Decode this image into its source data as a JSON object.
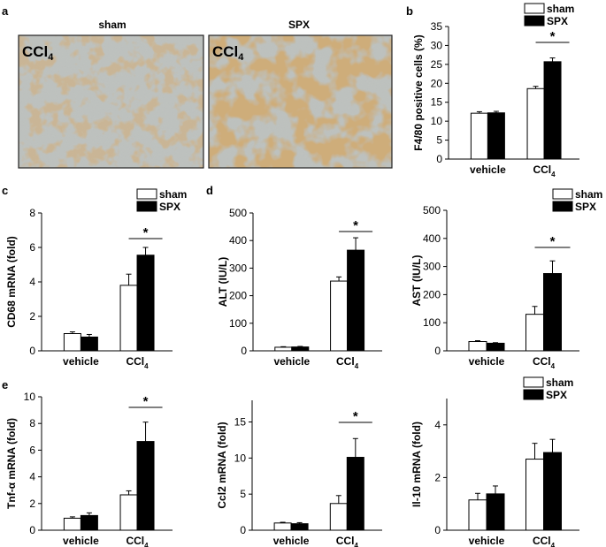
{
  "panel_labels": [
    "a",
    "b",
    "c",
    "d",
    "e"
  ],
  "micrographs": [
    {
      "title": "sham",
      "corner_label": "CCl",
      "corner_sub": "4"
    },
    {
      "title": "SPX",
      "corner_label": "CCl",
      "corner_sub": "4"
    }
  ],
  "legend": {
    "sham": "sham",
    "spx": "SPX"
  },
  "colors": {
    "sham": "#ffffff",
    "spx": "#000000",
    "tissue": "#b9bdb8",
    "stain": "#a86a2e"
  },
  "chart_data": [
    {
      "id": "b",
      "type": "bar",
      "categories": [
        "vehicle",
        "CCl4"
      ],
      "cat_main": [
        "vehicle",
        "CCl"
      ],
      "cat_sub": [
        "",
        "4"
      ],
      "series": [
        {
          "name": "sham",
          "values": [
            12.1,
            18.6
          ],
          "errors": [
            0.4,
            0.6
          ]
        },
        {
          "name": "SPX",
          "values": [
            12.2,
            25.7
          ],
          "errors": [
            0.4,
            1.0
          ]
        }
      ],
      "ylabel": "F4/80 positive cells (%)",
      "ylim": [
        0,
        35
      ],
      "yticks": [
        0,
        5,
        10,
        15,
        20,
        25,
        30,
        35
      ],
      "significance": "*",
      "legend": true
    },
    {
      "id": "c",
      "type": "bar",
      "categories": [
        "vehicle",
        "CCl4"
      ],
      "cat_main": [
        "vehicle",
        "CCl"
      ],
      "cat_sub": [
        "",
        "4"
      ],
      "series": [
        {
          "name": "sham",
          "values": [
            1.0,
            3.8
          ],
          "errors": [
            0.1,
            0.65
          ]
        },
        {
          "name": "SPX",
          "values": [
            0.8,
            5.55
          ],
          "errors": [
            0.15,
            0.45
          ]
        }
      ],
      "ylabel": "CD68 mRNA (fold)",
      "ylim": [
        0,
        8
      ],
      "yticks": [
        0,
        2,
        4,
        6,
        8
      ],
      "significance": "*",
      "legend": true
    },
    {
      "id": "d1",
      "type": "bar",
      "categories": [
        "vehicle",
        "CCl4"
      ],
      "cat_main": [
        "vehicle",
        "CCl"
      ],
      "cat_sub": [
        "",
        "4"
      ],
      "series": [
        {
          "name": "sham",
          "values": [
            13,
            253
          ],
          "errors": [
            2,
            15
          ]
        },
        {
          "name": "SPX",
          "values": [
            14,
            365
          ],
          "errors": [
            2,
            45
          ]
        }
      ],
      "ylabel": "ALT (IU/L)",
      "ylim": [
        0,
        500
      ],
      "yticks": [
        0,
        100,
        200,
        300,
        400,
        500
      ],
      "significance": "*",
      "legend": false
    },
    {
      "id": "d2",
      "type": "bar",
      "categories": [
        "vehicle",
        "CCl4"
      ],
      "cat_main": [
        "vehicle",
        "CCl"
      ],
      "cat_sub": [
        "",
        "4"
      ],
      "series": [
        {
          "name": "sham",
          "values": [
            33,
            130
          ],
          "errors": [
            3,
            28
          ]
        },
        {
          "name": "SPX",
          "values": [
            27,
            275
          ],
          "errors": [
            2,
            45
          ]
        }
      ],
      "ylabel": "AST (IU/L)",
      "ylim": [
        0,
        500
      ],
      "yticks": [
        0,
        100,
        200,
        300,
        400,
        500
      ],
      "significance": "*",
      "legend": true
    },
    {
      "id": "e1",
      "type": "bar",
      "categories": [
        "vehicle",
        "CCl4"
      ],
      "cat_main": [
        "vehicle",
        "CCl"
      ],
      "cat_sub": [
        "",
        "4"
      ],
      "series": [
        {
          "name": "sham",
          "values": [
            0.9,
            2.65
          ],
          "errors": [
            0.1,
            0.3
          ]
        },
        {
          "name": "SPX",
          "values": [
            1.1,
            6.65
          ],
          "errors": [
            0.2,
            1.45
          ]
        }
      ],
      "ylabel": "Tnf-α mRNA (fold)",
      "ylim": [
        0,
        10
      ],
      "yticks": [
        0,
        2,
        4,
        6,
        8,
        10
      ],
      "significance": "*",
      "legend": false
    },
    {
      "id": "e2",
      "type": "bar",
      "categories": [
        "vehicle",
        "CCl4"
      ],
      "cat_main": [
        "vehicle",
        "CCl"
      ],
      "cat_sub": [
        "",
        "4"
      ],
      "series": [
        {
          "name": "sham",
          "values": [
            1.0,
            3.7
          ],
          "errors": [
            0.1,
            1.1
          ]
        },
        {
          "name": "SPX",
          "values": [
            0.9,
            10.1
          ],
          "errors": [
            0.15,
            2.6
          ]
        }
      ],
      "ylabel": "Ccl2 mRNA (fold)",
      "ylim": [
        0,
        18
      ],
      "yticks": [
        0,
        5,
        10,
        15
      ],
      "significance": "*",
      "legend": false
    },
    {
      "id": "e3",
      "type": "bar",
      "categories": [
        "vehicle",
        "CCl4"
      ],
      "cat_main": [
        "vehicle",
        "CCl"
      ],
      "cat_sub": [
        "",
        "4"
      ],
      "series": [
        {
          "name": "sham",
          "values": [
            1.15,
            2.7
          ],
          "errors": [
            0.25,
            0.6
          ]
        },
        {
          "name": "SPX",
          "values": [
            1.38,
            2.95
          ],
          "errors": [
            0.3,
            0.5
          ]
        }
      ],
      "ylabel": "Il-10 mRNA (fold)",
      "ylim": [
        0,
        5
      ],
      "yticks": [
        0,
        2,
        4
      ],
      "significance": "",
      "legend": true
    }
  ]
}
